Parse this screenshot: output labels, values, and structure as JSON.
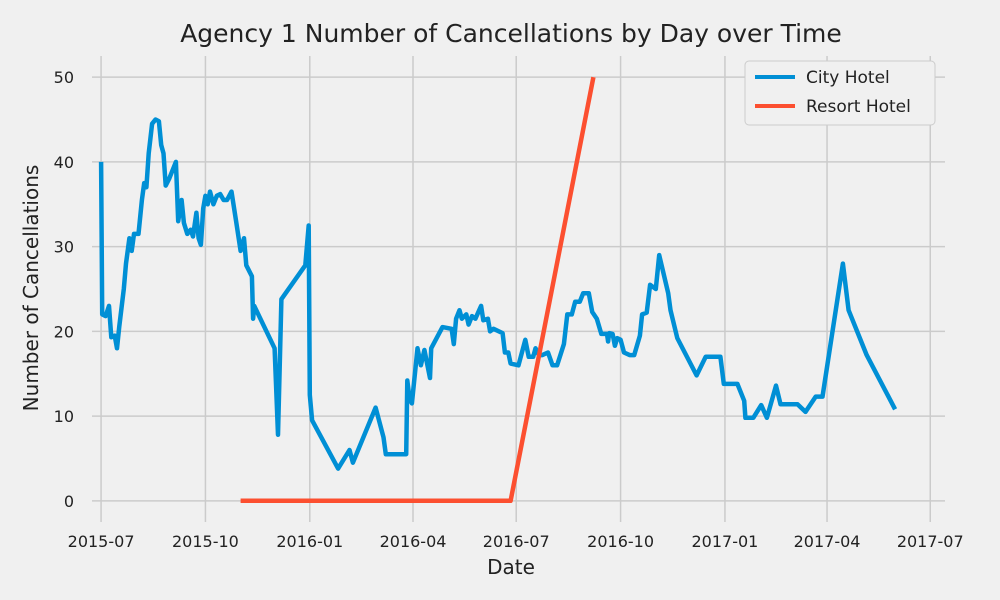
{
  "chart_data": {
    "type": "line",
    "title": "Agency 1 Number of Cancellations by Day over Time",
    "xlabel": "Date",
    "ylabel": "Number of Cancellations",
    "x_ticks": [
      "2015-07",
      "2015-10",
      "2016-01",
      "2016-04",
      "2016-07",
      "2016-10",
      "2017-01",
      "2017-04",
      "2017-07"
    ],
    "xlim": [
      "2015-06-23",
      "2017-07-14"
    ],
    "y_ticks": [
      0,
      10,
      20,
      30,
      40,
      50
    ],
    "ylim": [
      -2.5,
      52.5
    ],
    "grid": true,
    "legend_position": "top-right",
    "series": [
      {
        "name": "City Hotel",
        "color": "#008fd5",
        "points": [
          [
            "2015-07-01",
            40
          ],
          [
            "2015-07-02",
            22
          ],
          [
            "2015-07-05",
            21.8
          ],
          [
            "2015-07-08",
            23
          ],
          [
            "2015-07-10",
            19.3
          ],
          [
            "2015-07-13",
            19.5
          ],
          [
            "2015-07-15",
            18
          ],
          [
            "2015-07-17",
            20.5
          ],
          [
            "2015-07-21",
            25
          ],
          [
            "2015-07-23",
            28
          ],
          [
            "2015-07-26",
            31
          ],
          [
            "2015-07-28",
            29.5
          ],
          [
            "2015-07-30",
            31.5
          ],
          [
            "2015-08-03",
            31.5
          ],
          [
            "2015-08-06",
            35.5
          ],
          [
            "2015-08-08",
            37.5
          ],
          [
            "2015-08-10",
            37
          ],
          [
            "2015-08-12",
            41
          ],
          [
            "2015-08-15",
            44.5
          ],
          [
            "2015-08-18",
            45
          ],
          [
            "2015-08-21",
            44.8
          ],
          [
            "2015-08-23",
            42
          ],
          [
            "2015-08-25",
            41
          ],
          [
            "2015-08-27",
            37.2
          ],
          [
            "2015-08-30",
            38
          ],
          [
            "2015-09-02",
            39
          ],
          [
            "2015-09-05",
            40
          ],
          [
            "2015-09-07",
            33
          ],
          [
            "2015-09-10",
            35.5
          ],
          [
            "2015-09-12",
            32.8
          ],
          [
            "2015-09-15",
            31.5
          ],
          [
            "2015-09-18",
            32
          ],
          [
            "2015-09-20",
            31.2
          ],
          [
            "2015-09-23",
            34
          ],
          [
            "2015-09-25",
            31
          ],
          [
            "2015-09-27",
            30.2
          ],
          [
            "2015-09-29",
            34.5
          ],
          [
            "2015-10-01",
            36
          ],
          [
            "2015-10-03",
            35
          ],
          [
            "2015-10-05",
            36.5
          ],
          [
            "2015-10-08",
            35
          ],
          [
            "2015-10-11",
            36
          ],
          [
            "2015-10-14",
            36.2
          ],
          [
            "2015-10-17",
            35.5
          ],
          [
            "2015-10-20",
            35.5
          ],
          [
            "2015-10-24",
            36.5
          ],
          [
            "2015-10-28",
            33
          ],
          [
            "2015-11-01",
            29.5
          ],
          [
            "2015-11-04",
            31
          ],
          [
            "2015-11-06",
            27.8
          ],
          [
            "2015-11-11",
            26.5
          ],
          [
            "2015-11-12",
            21.5
          ],
          [
            "2015-11-13",
            23
          ],
          [
            "2015-12-01",
            18
          ],
          [
            "2015-12-04",
            7.8
          ],
          [
            "2015-12-07",
            23.8
          ],
          [
            "2015-12-28",
            27.8
          ],
          [
            "2015-12-31",
            32.5
          ],
          [
            "2016-01-01",
            12.5
          ],
          [
            "2016-01-03",
            9.5
          ],
          [
            "2016-01-26",
            3.8
          ],
          [
            "2016-02-05",
            6
          ],
          [
            "2016-02-08",
            4.5
          ],
          [
            "2016-02-28",
            11
          ],
          [
            "2016-03-06",
            7.5
          ],
          [
            "2016-03-08",
            5.5
          ],
          [
            "2016-03-26",
            5.5
          ],
          [
            "2016-03-27",
            14.2
          ],
          [
            "2016-03-29",
            12
          ],
          [
            "2016-03-31",
            11.5
          ],
          [
            "2016-04-05",
            18
          ],
          [
            "2016-04-08",
            16
          ],
          [
            "2016-04-11",
            17.8
          ],
          [
            "2016-04-16",
            14.5
          ],
          [
            "2016-04-17",
            18
          ],
          [
            "2016-04-27",
            20.5
          ],
          [
            "2016-05-05",
            20.3
          ],
          [
            "2016-05-07",
            18.5
          ],
          [
            "2016-05-09",
            21.5
          ],
          [
            "2016-05-12",
            22.5
          ],
          [
            "2016-05-14",
            21.5
          ],
          [
            "2016-05-18",
            22
          ],
          [
            "2016-05-20",
            20.8
          ],
          [
            "2016-05-23",
            21.8
          ],
          [
            "2016-05-26",
            21.5
          ],
          [
            "2016-05-31",
            23
          ],
          [
            "2016-06-02",
            21.3
          ],
          [
            "2016-06-06",
            21.5
          ],
          [
            "2016-06-08",
            20
          ],
          [
            "2016-06-11",
            20.3
          ],
          [
            "2016-06-19",
            19.8
          ],
          [
            "2016-06-21",
            17.5
          ],
          [
            "2016-06-24",
            17.5
          ],
          [
            "2016-06-26",
            16.2
          ],
          [
            "2016-07-03",
            16
          ],
          [
            "2016-07-09",
            19
          ],
          [
            "2016-07-12",
            17
          ],
          [
            "2016-07-16",
            17
          ],
          [
            "2016-07-18",
            18
          ],
          [
            "2016-07-21",
            17.2
          ],
          [
            "2016-07-24",
            17.2
          ],
          [
            "2016-07-29",
            17.5
          ],
          [
            "2016-08-02",
            16
          ],
          [
            "2016-08-06",
            16
          ],
          [
            "2016-08-12",
            18.5
          ],
          [
            "2016-08-15",
            22
          ],
          [
            "2016-08-19",
            22
          ],
          [
            "2016-08-22",
            23.5
          ],
          [
            "2016-08-26",
            23.5
          ],
          [
            "2016-08-29",
            24.5
          ],
          [
            "2016-09-03",
            24.5
          ],
          [
            "2016-09-06",
            22.3
          ],
          [
            "2016-09-10",
            21.5
          ],
          [
            "2016-09-14",
            19.7
          ],
          [
            "2016-09-19",
            19.7
          ],
          [
            "2016-09-20",
            18.8
          ],
          [
            "2016-09-21",
            19.8
          ],
          [
            "2016-09-24",
            19.7
          ],
          [
            "2016-09-26",
            18.3
          ],
          [
            "2016-09-28",
            19.2
          ],
          [
            "2016-10-01",
            19
          ],
          [
            "2016-10-04",
            17.5
          ],
          [
            "2016-10-09",
            17.2
          ],
          [
            "2016-10-13",
            17.2
          ],
          [
            "2016-10-18",
            19.5
          ],
          [
            "2016-10-20",
            22
          ],
          [
            "2016-10-24",
            22.2
          ],
          [
            "2016-10-27",
            25.5
          ],
          [
            "2016-11-01",
            25
          ],
          [
            "2016-11-04",
            29
          ],
          [
            "2016-11-12",
            24.5
          ],
          [
            "2016-11-14",
            22.5
          ],
          [
            "2016-11-20",
            19.2
          ],
          [
            "2016-12-07",
            14.8
          ],
          [
            "2016-12-15",
            17
          ],
          [
            "2016-12-28",
            17
          ],
          [
            "2016-12-31",
            13.8
          ],
          [
            "2017-01-12",
            13.8
          ],
          [
            "2017-01-18",
            11.8
          ],
          [
            "2017-01-19",
            9.8
          ],
          [
            "2017-01-26",
            9.8
          ],
          [
            "2017-02-02",
            11.3
          ],
          [
            "2017-02-07",
            9.8
          ],
          [
            "2017-02-15",
            13.6
          ],
          [
            "2017-02-19",
            11.4
          ],
          [
            "2017-03-06",
            11.4
          ],
          [
            "2017-03-13",
            10.5
          ],
          [
            "2017-03-22",
            12.3
          ],
          [
            "2017-03-28",
            12.3
          ],
          [
            "2017-04-15",
            28
          ],
          [
            "2017-04-20",
            22.5
          ],
          [
            "2017-05-06",
            17.2
          ],
          [
            "2017-05-31",
            10.8
          ]
        ]
      },
      {
        "name": "Resort Hotel",
        "color": "#fc4f30",
        "points": [
          [
            "2015-11-01",
            0
          ],
          [
            "2016-06-26",
            0
          ],
          [
            "2016-09-07",
            50
          ]
        ]
      }
    ]
  }
}
